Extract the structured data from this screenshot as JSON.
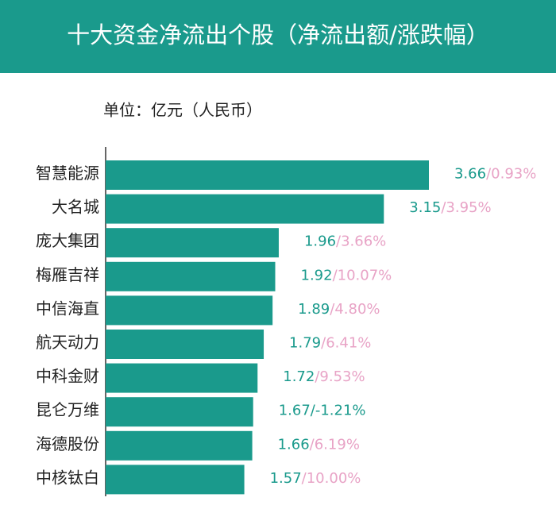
{
  "chart_data": {
    "type": "bar",
    "orientation": "horizontal",
    "title": "十大资金净流出个股（净流出额/涨跌幅）",
    "unit_label": "单位：亿元（人民币）",
    "categories": [
      "智慧能源",
      "大名城",
      "庞大集团",
      "梅雁吉祥",
      "中信海直",
      "航天动力",
      "中科金财",
      "昆仑万维",
      "海德股份",
      "中核钛白"
    ],
    "values": [
      3.66,
      3.15,
      1.96,
      1.92,
      1.89,
      1.79,
      1.72,
      1.67,
      1.66,
      1.57
    ],
    "separator": "/",
    "changes": [
      0.93,
      3.95,
      3.66,
      10.07,
      4.8,
      6.41,
      9.53,
      -1.21,
      6.19,
      10.0
    ],
    "change_labels": [
      "0.93%",
      "3.95%",
      "3.66%",
      "10.07%",
      "4.80%",
      "6.41%",
      "9.53%",
      "-1.21%",
      "6.19%",
      "10.00%"
    ],
    "color": "#1a9a8c",
    "value_color": "#1a9a8c",
    "change_color": "#e8a3c6",
    "negative_change_color": "#1a9a8c",
    "xlim": [
      0,
      5
    ]
  }
}
